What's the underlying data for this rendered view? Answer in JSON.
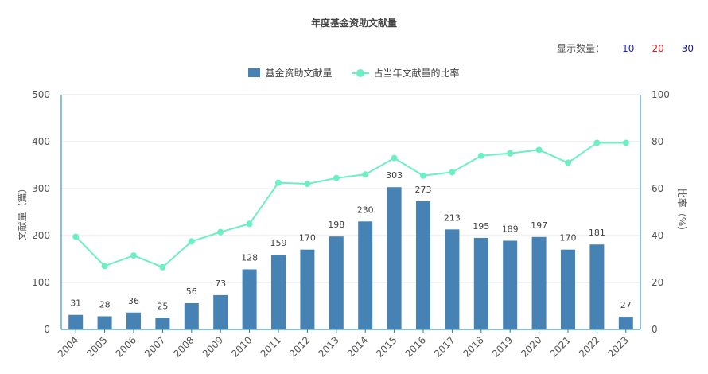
{
  "title": "年度基金资助文献量",
  "count_selector": {
    "label": "显示数量：",
    "options": [
      {
        "label": "10",
        "color": "#1a1aff"
      },
      {
        "label": "20",
        "color": "#e02020"
      },
      {
        "label": "30",
        "color": "#1a1aa0"
      }
    ]
  },
  "colors": {
    "bar": "#4682b4",
    "line": "#6cf0c2",
    "axis": "#1a7fa8",
    "grid": "#e3e3e3"
  },
  "chart_data": {
    "type": "bar",
    "title": "年度基金资助文献量",
    "categories": [
      "2004",
      "2005",
      "2006",
      "2007",
      "2008",
      "2009",
      "2010",
      "2011",
      "2012",
      "2013",
      "2014",
      "2015",
      "2016",
      "2017",
      "2018",
      "2019",
      "2020",
      "2021",
      "2022",
      "2023"
    ],
    "series": [
      {
        "name": "基金资助文献量",
        "type": "bar",
        "axis": "left",
        "values": [
          31,
          28,
          36,
          25,
          56,
          73,
          128,
          159,
          170,
          198,
          230,
          303,
          273,
          213,
          195,
          189,
          197,
          170,
          181,
          27
        ]
      },
      {
        "name": "占当年文献量的比率",
        "type": "line",
        "axis": "right",
        "values": [
          39.5,
          27,
          31.5,
          26.5,
          37.5,
          41.5,
          45,
          62.5,
          62,
          64.5,
          66,
          73,
          65.5,
          67,
          74,
          75,
          76.5,
          71,
          79.5,
          79.5
        ]
      }
    ],
    "ylabel": "文献量（篇）",
    "y2label": "比率（%）",
    "ylim": [
      0,
      500
    ],
    "y_ticks": [
      0,
      100,
      200,
      300,
      400,
      500
    ],
    "y2lim": [
      0,
      100
    ],
    "y2_ticks": [
      0,
      20,
      40,
      60,
      80,
      100
    ],
    "grid": true,
    "legend_position": "top-center"
  }
}
